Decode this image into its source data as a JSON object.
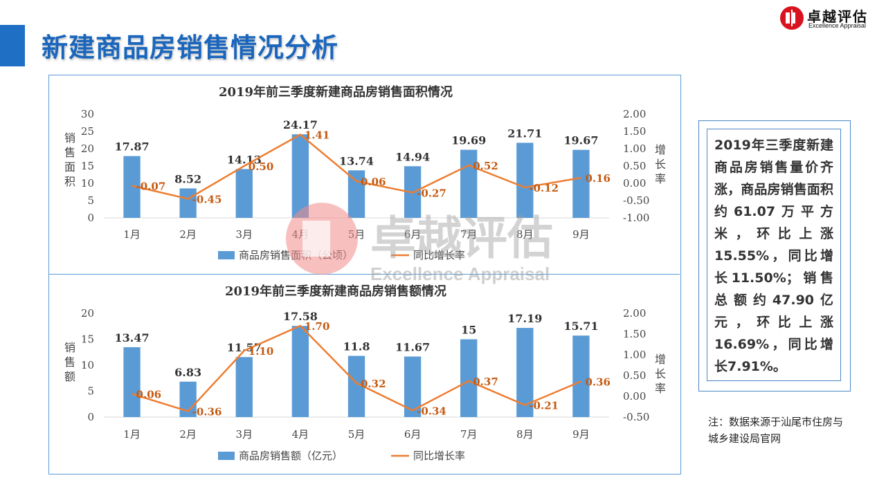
{
  "page": {
    "title": "新建商品房销售情况分析",
    "logo_name": "卓越评估",
    "logo_sub": "Excellence Appraisal",
    "watermark_name": "卓越评估",
    "watermark_sub": "Excellence Appraisal",
    "sidebar_text": "2019年三季度新建商品房销售量价齐涨，商品房销售面积约61.07万平方米，环比上涨15.55%，同比增长11.50%；销售总额约47.90亿元，环比上涨16.69%，同比增长7.91%。",
    "note": "注：数据来源于汕尾市住房与城乡建设局官网",
    "colors": {
      "accent": "#1a66bd",
      "bar": "#5b9bd5",
      "line": "#ed7d31",
      "label_line": "#c55a11"
    }
  },
  "chart_data": [
    {
      "type": "bar",
      "title": "2019年前三季度新建商品房销售面积情况",
      "categories": [
        "1月",
        "2月",
        "3月",
        "4月",
        "5月",
        "6月",
        "7月",
        "8月",
        "9月"
      ],
      "ylabel": "销售面积",
      "y2label": "增长率",
      "ylim": [
        0,
        30
      ],
      "yticks": [
        "0",
        "5",
        "10",
        "15",
        "20",
        "25",
        "30"
      ],
      "y2lim": [
        -1.0,
        2.0
      ],
      "y2ticks": [
        "-1.00",
        "-0.50",
        "0.00",
        "0.50",
        "1.00",
        "1.50",
        "2.00"
      ],
      "series": [
        {
          "name": "商品房销售面积（公顷）",
          "kind": "bar",
          "values": [
            17.87,
            8.52,
            14.13,
            24.17,
            13.74,
            14.94,
            19.69,
            21.71,
            19.67
          ],
          "labels": [
            "17.87",
            "8.52",
            "14.13",
            "24.17",
            "13.74",
            "14.94",
            "19.69",
            "21.71",
            "19.67"
          ]
        },
        {
          "name": "同比增长率",
          "kind": "line",
          "axis": "right",
          "values": [
            -0.07,
            -0.45,
            0.5,
            1.41,
            0.06,
            -0.27,
            0.52,
            -0.12,
            0.16
          ],
          "labels": [
            "-0.07",
            "-0.45",
            "0.50",
            "1.41",
            "0.06",
            "-0.27",
            "0.52",
            "-0.12",
            "0.16"
          ]
        }
      ],
      "legend": "bottom"
    },
    {
      "type": "bar",
      "title": "2019年前三季度新建商品房销售额情况",
      "categories": [
        "1月",
        "2月",
        "3月",
        "4月",
        "5月",
        "6月",
        "7月",
        "8月",
        "9月"
      ],
      "ylabel": "销售额",
      "y2label": "增长率",
      "ylim": [
        0,
        20
      ],
      "yticks": [
        "0",
        "5",
        "10",
        "15",
        "20"
      ],
      "y2lim": [
        -0.5,
        2.0
      ],
      "y2ticks": [
        "-0.50",
        "0.00",
        "0.50",
        "1.00",
        "1.50",
        "2.00"
      ],
      "series": [
        {
          "name": "商品房销售额（亿元）",
          "kind": "bar",
          "values": [
            13.47,
            6.83,
            11.57,
            17.58,
            11.8,
            11.67,
            15,
            17.19,
            15.71
          ],
          "labels": [
            "13.47",
            "6.83",
            "11.57",
            "17.58",
            "11.8",
            "11.67",
            "15",
            "17.19",
            "15.71"
          ]
        },
        {
          "name": "同比增长率",
          "kind": "line",
          "axis": "right",
          "values": [
            0.06,
            -0.36,
            1.1,
            1.7,
            0.32,
            -0.34,
            0.37,
            -0.21,
            0.36
          ],
          "labels": [
            "0.06",
            "-0.36",
            "1.10",
            "1.70",
            "0.32",
            "-0.34",
            "0.37",
            "-0.21",
            "0.36"
          ]
        }
      ],
      "legend": "bottom"
    }
  ]
}
